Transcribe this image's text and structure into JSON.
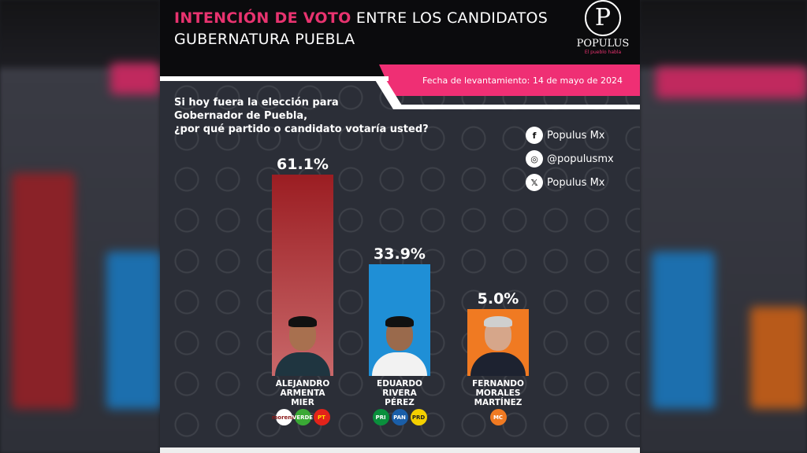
{
  "header": {
    "title_highlight": "INTENCIÓN DE VOTO",
    "title_rest": " ENTRE LOS CANDIDATOS",
    "title_line2": "GUBERNATURA PUEBLA",
    "logo_letter": "P",
    "logo_name": "POPULUS",
    "logo_tagline": "El pueblo habla",
    "date": "Fecha de levantamiento: 14 de mayo de 2024"
  },
  "question": [
    "Si hoy fuera la elección para",
    "Gobernador de Puebla,",
    "¿por qué partido o candidato votaría usted?"
  ],
  "social": [
    {
      "icon": "facebook-icon",
      "glyph": "f",
      "label": "Populus Mx"
    },
    {
      "icon": "instagram-icon",
      "glyph": "◎",
      "label": "@populusmx"
    },
    {
      "icon": "x-icon",
      "glyph": "𝕏",
      "label": "Populus Mx"
    }
  ],
  "colors": {
    "pink": "#ef2f74",
    "bar1": "#9b1d22",
    "bar2": "#1f8fd6",
    "bar3": "#f07a22"
  },
  "chart_data": {
    "type": "bar",
    "title": "Intención de voto entre los candidatos - Gubernatura Puebla",
    "categories": [
      "ALEJANDRO ARMENTA MIER",
      "EDUARDO RIVERA PÉREZ",
      "FERNANDO MORALES MARTÍNEZ"
    ],
    "values": [
      61.1,
      33.9,
      5.0
    ],
    "labels": [
      "61.1%",
      "33.9%",
      "5.0%"
    ],
    "ylim": [
      0,
      61.1
    ],
    "candidates": [
      {
        "name": [
          "ALEJANDRO",
          "ARMENTA",
          "MIER"
        ],
        "parties": [
          {
            "t": "morena",
            "c": "#fff",
            "fc": "#8b1a1a"
          },
          {
            "t": "VERDE",
            "c": "#3aa935",
            "fc": "#fff"
          },
          {
            "t": "PT",
            "c": "#e2231a",
            "fc": "#ffde00"
          }
        ]
      },
      {
        "name": [
          "EDUARDO",
          "RIVERA",
          "PÉREZ"
        ],
        "parties": [
          {
            "t": "PRI",
            "c": "#0a8f3c",
            "fc": "#fff"
          },
          {
            "t": "PAN",
            "c": "#1a5ea8",
            "fc": "#fff"
          },
          {
            "t": "PRD",
            "c": "#f4d000",
            "fc": "#222"
          }
        ]
      },
      {
        "name": [
          "FERNANDO",
          "MORALES",
          "MARTÍNEZ"
        ],
        "parties": [
          {
            "t": "MC",
            "c": "#f07a22",
            "fc": "#fff"
          }
        ]
      }
    ]
  }
}
